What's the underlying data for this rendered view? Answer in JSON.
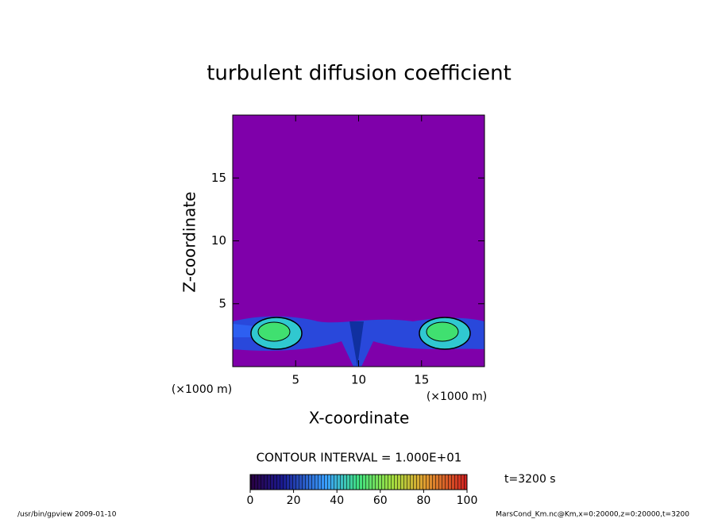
{
  "chart_data": {
    "type": "contour",
    "title": "turbulent diffusion coefficient",
    "x_label": "X-coordinate",
    "y_label": "Z-coordinate",
    "x_unit": "(×1000 m)",
    "y_unit": "(×1000 m)",
    "xlim": [
      0,
      20
    ],
    "ylim": [
      0,
      20
    ],
    "xticks": [
      5,
      10,
      15
    ],
    "yticks": [
      5,
      10,
      15
    ],
    "background_color": "#7f00aa",
    "contour_interval_label": "CONTOUR INTERVAL = 1.000E+01",
    "colorbar": {
      "lim": [
        0,
        100
      ],
      "ticks": [
        0,
        20,
        40,
        60,
        80,
        100
      ]
    },
    "time_label": "t=3200 s",
    "footer_left": "/usr/bin/gpview   2009-01-10",
    "footer_right": "MarsCond_Km.nc@Km,x=0:20000,z=0:20000,t=3200"
  }
}
